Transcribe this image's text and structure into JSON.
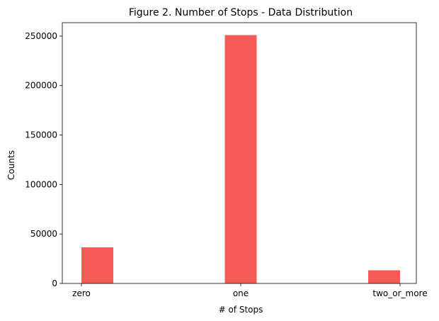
{
  "chart_data": {
    "type": "bar",
    "title": "Figure 2. Number of Stops - Data Distribution",
    "xlabel": "# of Stops",
    "ylabel": "Counts",
    "categories": [
      "zero",
      "one",
      "two_or_more"
    ],
    "values": [
      36500,
      251000,
      13300
    ],
    "ylim": [
      0,
      263550
    ],
    "yticks": [
      0,
      50000,
      100000,
      150000,
      200000,
      250000
    ],
    "yticks_labels": [
      "0",
      "50000",
      "100000",
      "150000",
      "200000",
      "250000"
    ],
    "grid": false,
    "legend": "none",
    "bar_color": "#f45b56"
  }
}
